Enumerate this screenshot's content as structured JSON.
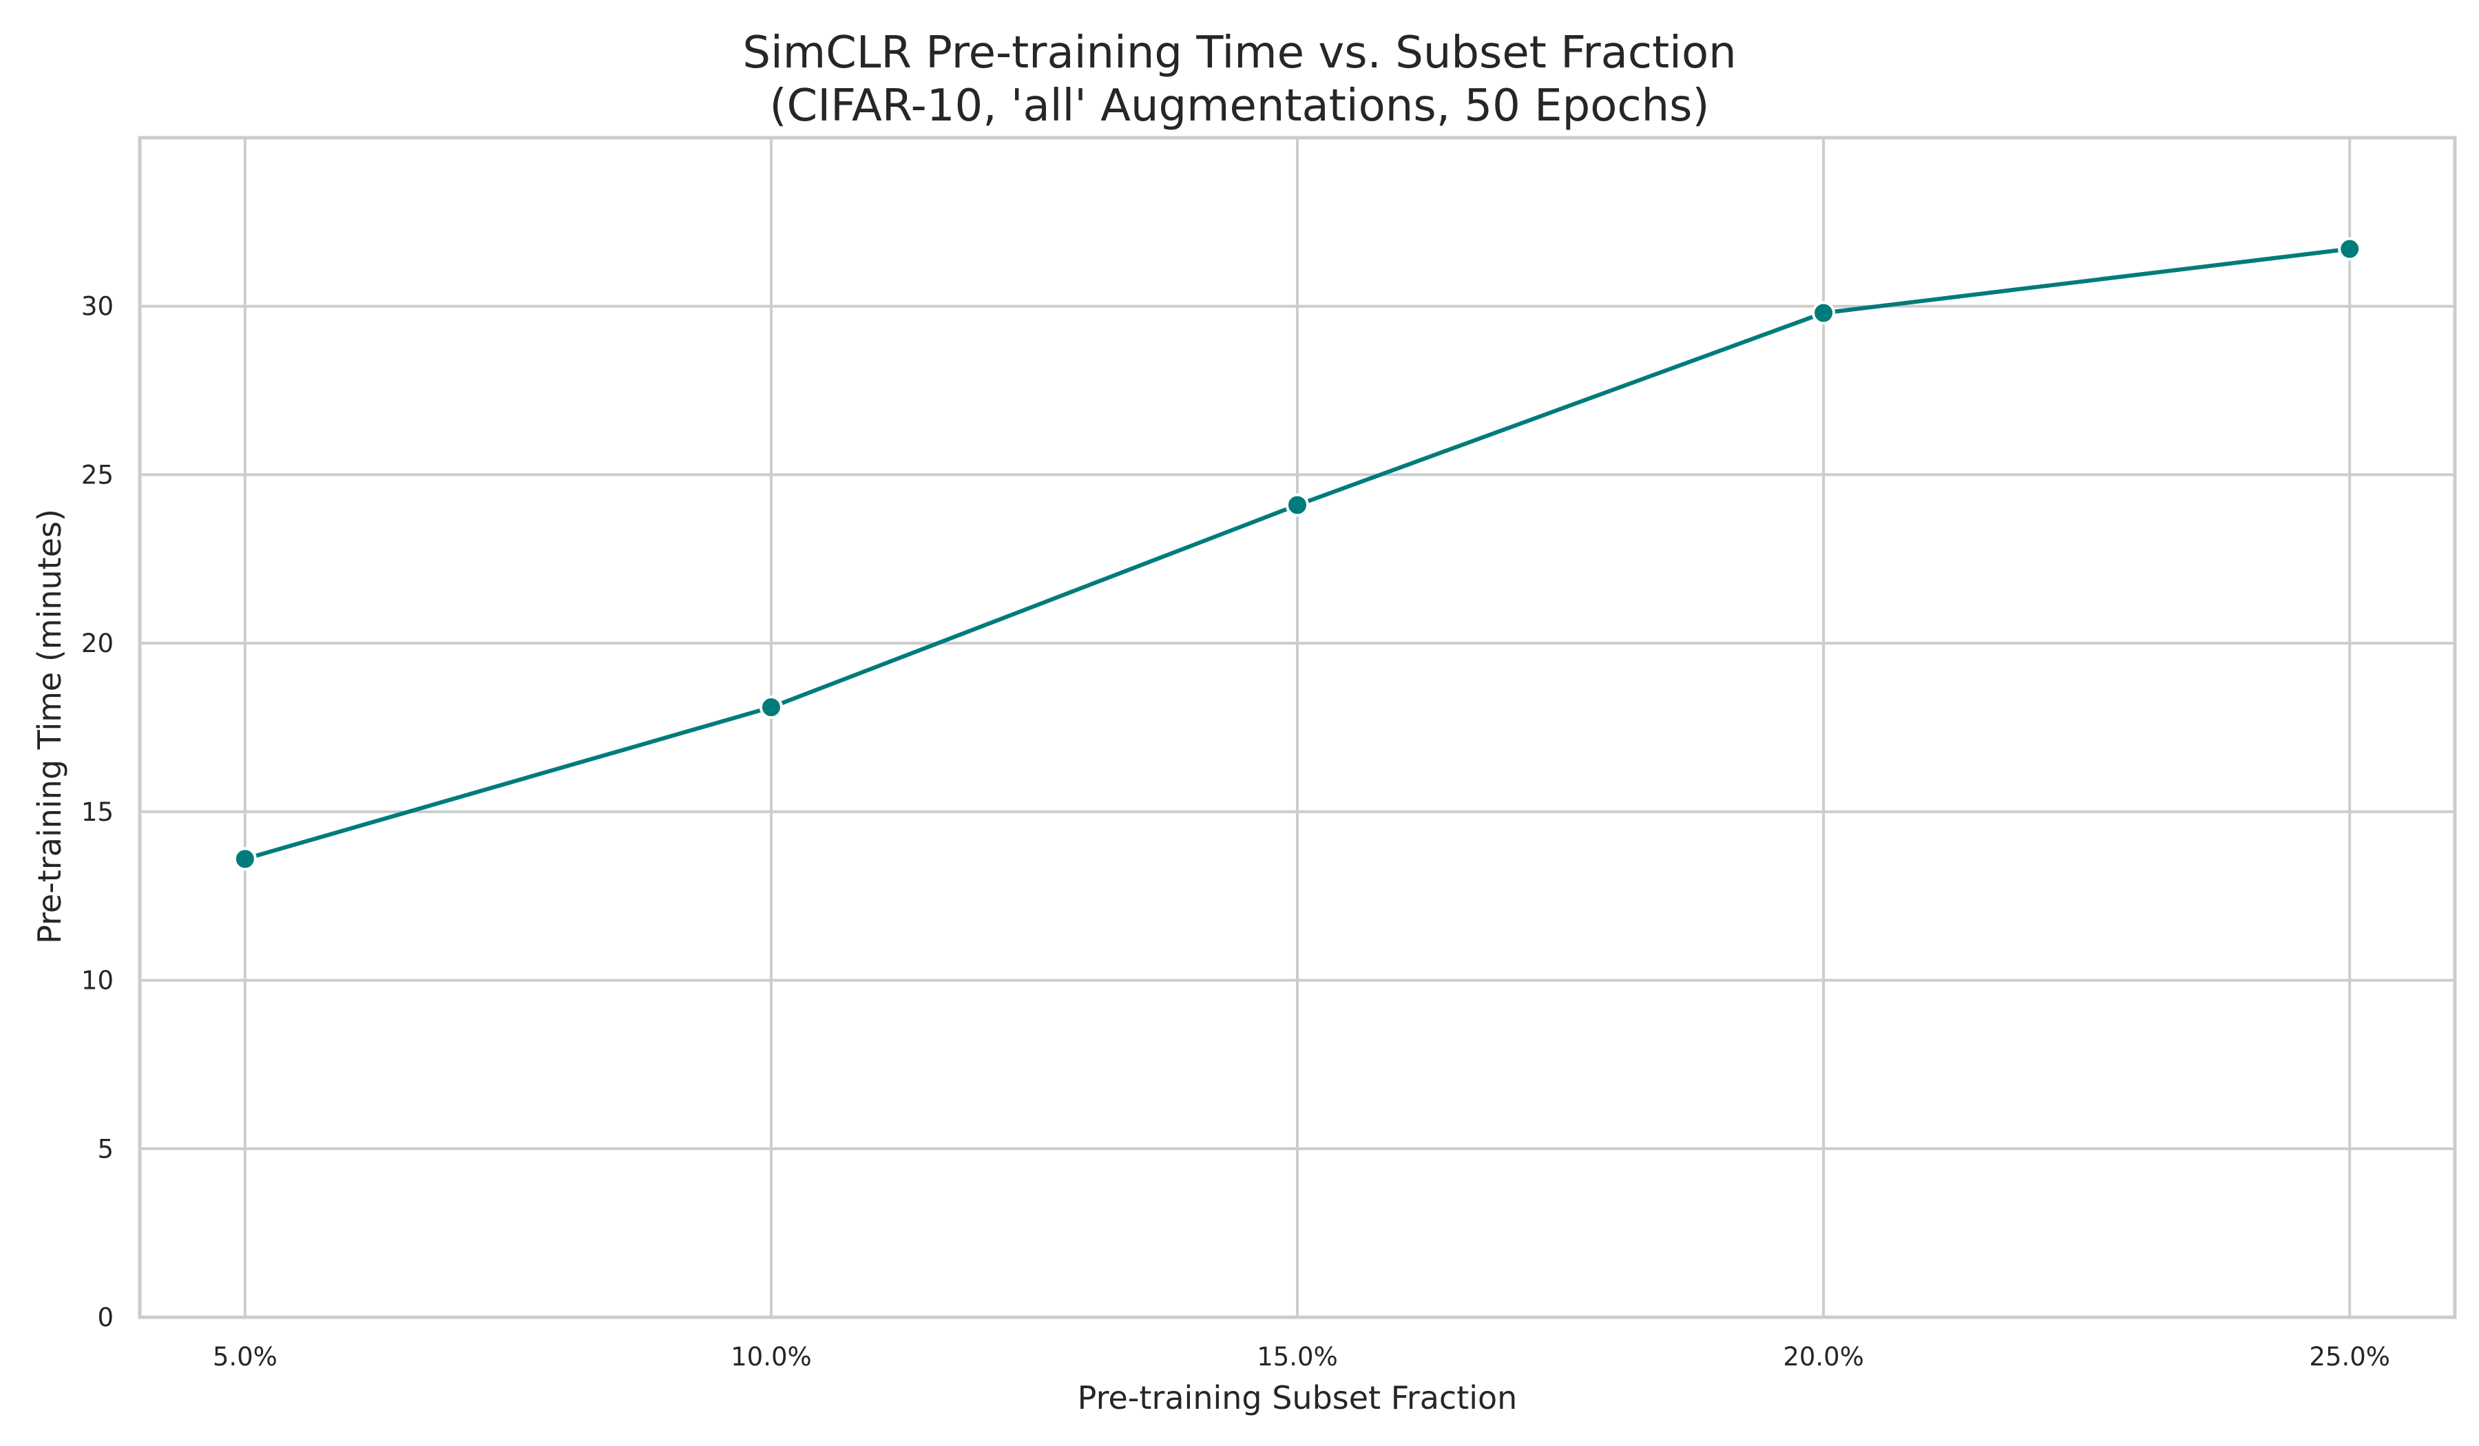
{
  "chart_data": {
    "type": "line",
    "title": "SimCLR Pre-training Time vs. Subset Fraction",
    "subtitle": "(CIFAR-10, 'all' Augmentations, 50 Epochs)",
    "xlabel": "Pre-training Subset Fraction",
    "ylabel": "Pre-training Time (minutes)",
    "x": [
      5,
      10,
      15,
      20,
      25
    ],
    "x_tick_labels": [
      "5.0%",
      "10.0%",
      "15.0%",
      "20.0%",
      "25.0%"
    ],
    "xlim": [
      4.0,
      26.0
    ],
    "y_ticks": [
      0,
      5,
      10,
      15,
      20,
      25,
      30
    ],
    "y_tick_labels": [
      "0",
      "5",
      "10",
      "15",
      "20",
      "25",
      "30"
    ],
    "ylim": [
      0,
      35
    ],
    "grid": true,
    "series": [
      {
        "values": [
          13.6,
          18.1,
          24.1,
          29.8,
          31.7
        ],
        "color": "#007b7b",
        "marker": "circle"
      }
    ]
  }
}
